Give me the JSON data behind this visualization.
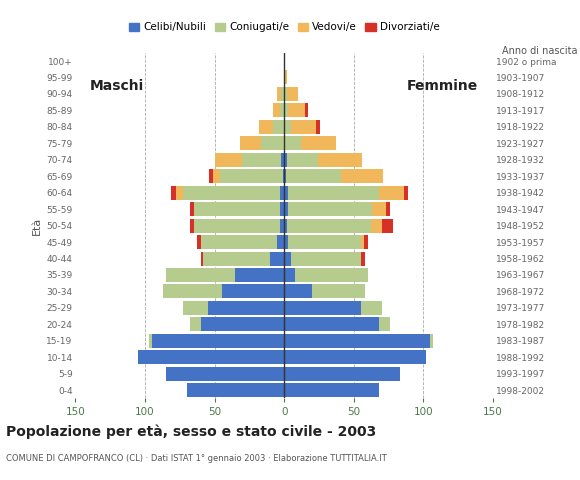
{
  "age_groups": [
    "0-4",
    "5-9",
    "10-14",
    "15-19",
    "20-24",
    "25-29",
    "30-34",
    "35-39",
    "40-44",
    "45-49",
    "50-54",
    "55-59",
    "60-64",
    "65-69",
    "70-74",
    "75-79",
    "80-84",
    "85-89",
    "90-94",
    "95-99",
    "100+"
  ],
  "birth_years": [
    "1998-2002",
    "1993-1997",
    "1988-1992",
    "1983-1987",
    "1978-1982",
    "1973-1977",
    "1968-1972",
    "1963-1967",
    "1958-1962",
    "1953-1957",
    "1948-1952",
    "1943-1947",
    "1938-1942",
    "1933-1937",
    "1928-1932",
    "1923-1927",
    "1918-1922",
    "1913-1917",
    "1908-1912",
    "1903-1907",
    "1902 o prima"
  ],
  "male": {
    "celibi": [
      70,
      85,
      105,
      95,
      60,
      55,
      45,
      35,
      10,
      5,
      3,
      3,
      3,
      1,
      2,
      0,
      0,
      0,
      0,
      0,
      0
    ],
    "coniugati": [
      0,
      0,
      0,
      2,
      8,
      18,
      42,
      50,
      48,
      55,
      62,
      62,
      70,
      45,
      28,
      17,
      8,
      3,
      2,
      0,
      0
    ],
    "vedovi": [
      0,
      0,
      0,
      0,
      0,
      0,
      0,
      0,
      0,
      0,
      0,
      0,
      5,
      5,
      20,
      15,
      10,
      5,
      3,
      0,
      0
    ],
    "divorziati": [
      0,
      0,
      0,
      0,
      0,
      0,
      0,
      0,
      2,
      3,
      3,
      3,
      3,
      3,
      0,
      0,
      0,
      0,
      0,
      0,
      0
    ]
  },
  "female": {
    "nubili": [
      68,
      83,
      102,
      105,
      68,
      55,
      20,
      8,
      5,
      3,
      2,
      3,
      3,
      1,
      2,
      0,
      0,
      0,
      0,
      0,
      0
    ],
    "coniugate": [
      0,
      0,
      0,
      2,
      8,
      15,
      38,
      52,
      50,
      52,
      60,
      60,
      65,
      40,
      22,
      12,
      5,
      3,
      2,
      0,
      0
    ],
    "vedove": [
      0,
      0,
      0,
      0,
      0,
      0,
      0,
      0,
      0,
      2,
      8,
      10,
      18,
      30,
      32,
      25,
      18,
      12,
      8,
      2,
      0
    ],
    "divorziate": [
      0,
      0,
      0,
      0,
      0,
      0,
      0,
      0,
      3,
      3,
      8,
      3,
      3,
      0,
      0,
      0,
      3,
      2,
      0,
      0,
      0
    ]
  },
  "colors": {
    "celibi_nubili": "#4472c4",
    "coniugati": "#b5cc8e",
    "vedovi": "#f0b85a",
    "divorziati": "#d73027"
  },
  "xlim": 150,
  "title": "Popolazione per età, sesso e stato civile - 2003",
  "subtitle": "COMUNE DI CAMPOFRANCO (CL) · Dati ISTAT 1° gennaio 2003 · Elaborazione TUTTITALIA.IT",
  "ylabel": "Età",
  "xlabel_right": "Anno di nascita",
  "legend_labels": [
    "Celibi/Nubili",
    "Coniugati/e",
    "Vedovi/e",
    "Divorziati/e"
  ],
  "background_color": "#ffffff",
  "grid_color": "#aaaaaa",
  "axis_color": "#4a7a4a",
  "bar_height": 0.85
}
